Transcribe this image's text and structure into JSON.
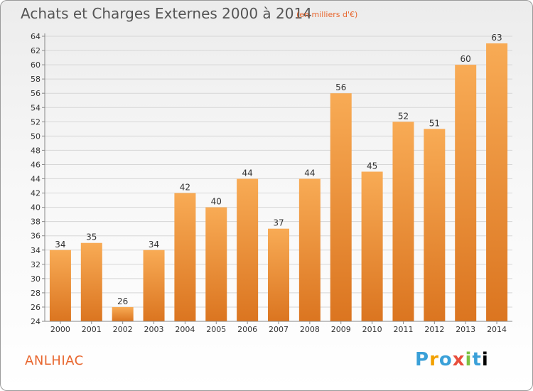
{
  "header": {
    "title": "Achats et Charges Externes 2000 à 2014",
    "unit": "(en milliers d'€)"
  },
  "footer": {
    "commune": "ANLHIAC",
    "brand_letters": [
      "P",
      "r",
      "o",
      "x",
      "i",
      "t",
      "i"
    ]
  },
  "colors": {
    "bar_top": "#f8ab55",
    "bar_bottom": "#db7520",
    "accent": "#e8662e"
  },
  "chart_data": {
    "type": "bar",
    "title": "Achats et Charges Externes 2000 à 2014",
    "subtitle": "(en milliers d'€)",
    "xlabel": "",
    "ylabel": "",
    "categories": [
      "2000",
      "2001",
      "2002",
      "2003",
      "2004",
      "2005",
      "2006",
      "2007",
      "2008",
      "2009",
      "2010",
      "2011",
      "2012",
      "2013",
      "2014"
    ],
    "values": [
      34,
      35,
      26,
      34,
      42,
      40,
      44,
      37,
      44,
      56,
      45,
      52,
      51,
      60,
      63
    ],
    "ylim": [
      24,
      64
    ],
    "yticks": [
      24,
      26,
      28,
      30,
      32,
      34,
      36,
      38,
      40,
      42,
      44,
      46,
      48,
      50,
      52,
      54,
      56,
      58,
      60,
      62,
      64
    ],
    "grid": true,
    "data_labels": true
  }
}
